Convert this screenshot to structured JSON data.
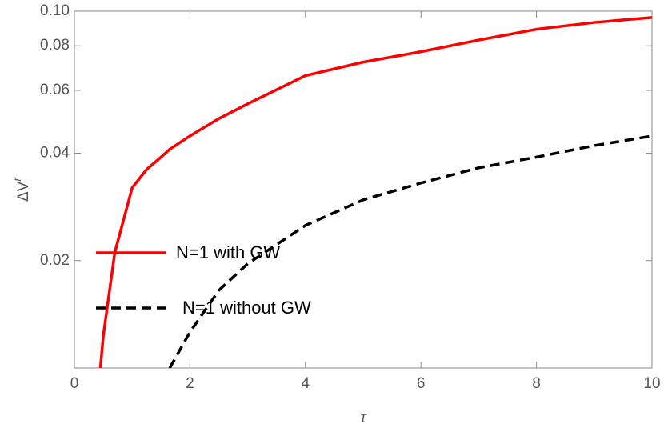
{
  "chart_data": {
    "type": "line",
    "xlabel": "τ",
    "ylabel": {
      "text": "ΔV",
      "superscript": "r"
    },
    "x": [
      0.45,
      0.5,
      0.7,
      1,
      1.25,
      1.5,
      1.65,
      2,
      2.5,
      3,
      4,
      5,
      6,
      7,
      8,
      9,
      10
    ],
    "series": [
      {
        "name": "N=1 with GW",
        "color": "#ff0000",
        "dash": "solid",
        "values": [
          0.01,
          0.0123,
          0.0211,
          0.032,
          0.036,
          0.039,
          0.041,
          0.0447,
          0.05,
          0.055,
          0.066,
          0.072,
          0.077,
          0.083,
          0.089,
          0.093,
          0.096
        ]
      },
      {
        "name": "N=1 without GW",
        "color": "#000000",
        "dash": "dashed",
        "values": [
          null,
          null,
          null,
          null,
          null,
          null,
          0.01,
          0.0126,
          0.0165,
          0.0196,
          0.0251,
          0.0296,
          0.033,
          0.0364,
          0.039,
          0.042,
          0.0447
        ]
      }
    ],
    "xlim": [
      0,
      10
    ],
    "xticks": [
      0,
      2,
      4,
      6,
      8,
      10
    ],
    "ylim": [
      0.01,
      0.1
    ],
    "yticks": [
      0.02,
      0.04,
      0.06,
      0.08,
      {
        "value": 0.1,
        "label": "0.10"
      }
    ],
    "ylog": true,
    "grid": false,
    "legend": "left"
  }
}
